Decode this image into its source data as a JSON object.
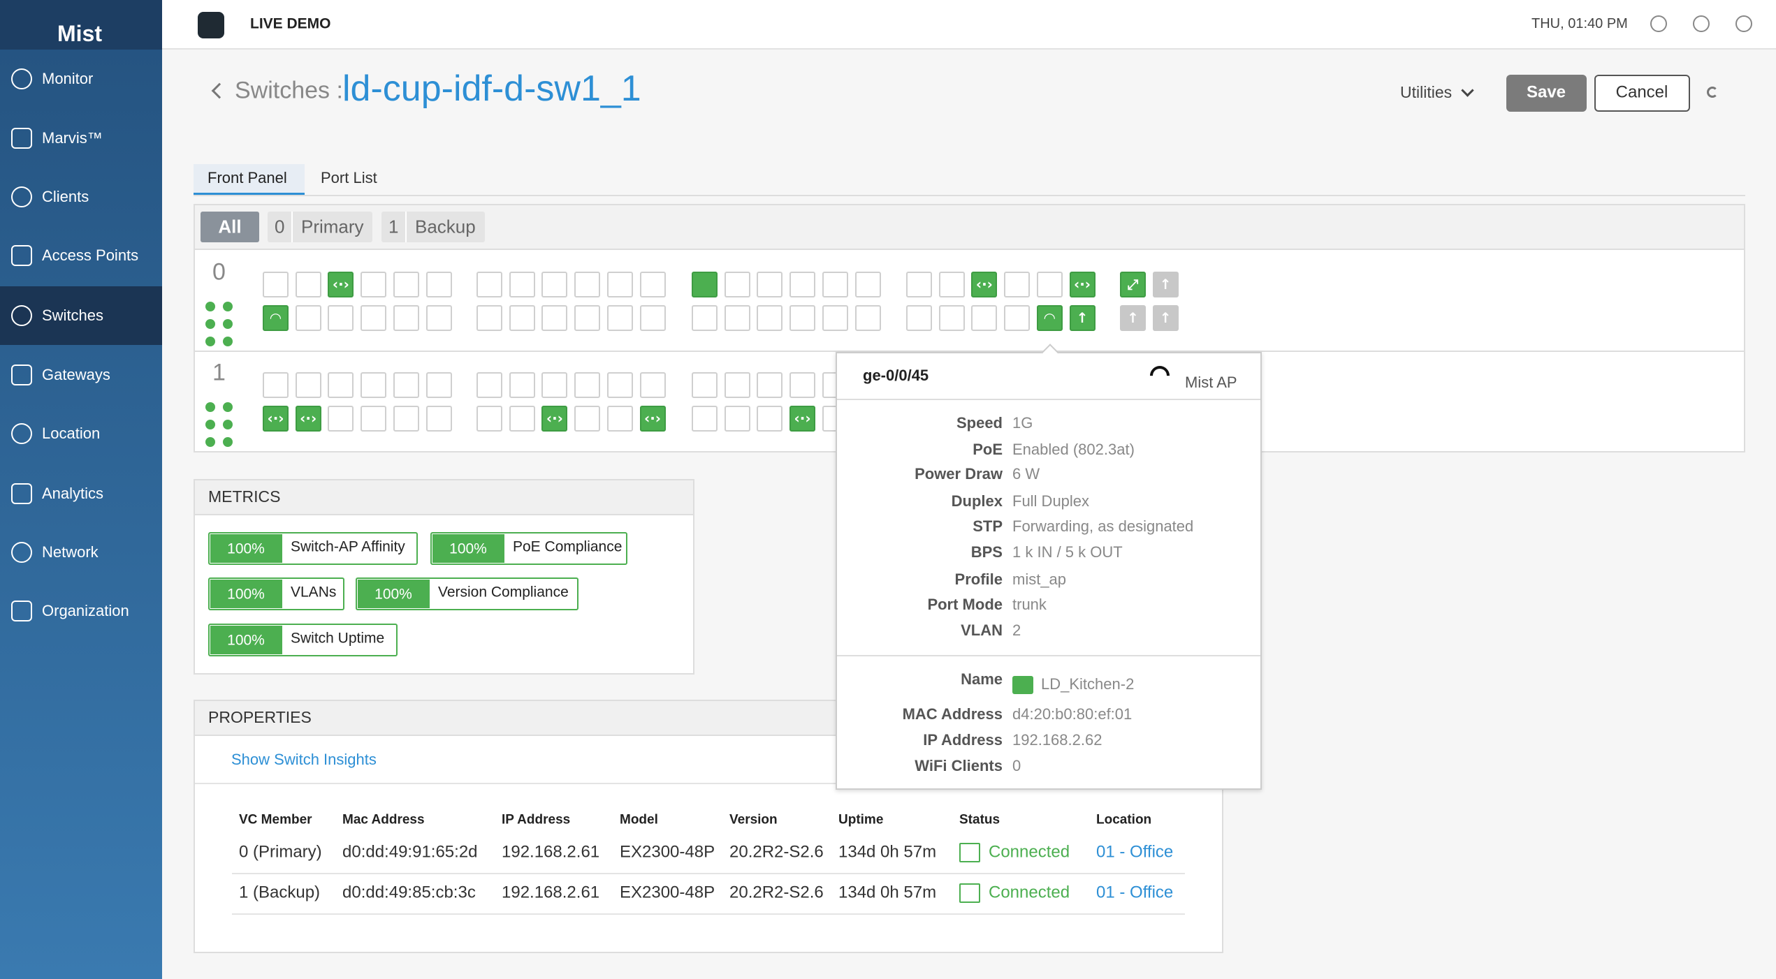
{
  "header": {
    "brand": "Mist",
    "title": "LIVE DEMO",
    "datetime": "THU, 01:40 PM"
  },
  "sidebar": {
    "items": [
      "Monitor",
      "Marvis™",
      "Clients",
      "Access Points",
      "Switches",
      "Gateways",
      "Location",
      "Analytics",
      "Network",
      "Organization"
    ]
  },
  "page": {
    "breadcrumb": "Switches :",
    "name": "ld-cup-idf-d-sw1_1",
    "utilities": "Utilities",
    "save": "Save",
    "cancel": "Cancel"
  },
  "tabs": [
    "Front Panel",
    "Port List"
  ],
  "filters": {
    "all": "All",
    "members": [
      {
        "id": 0,
        "role": "Primary"
      },
      {
        "id": 1,
        "role": "Backup"
      }
    ]
  },
  "members": [
    0,
    1
  ],
  "tooltip": {
    "port": "ge-0/0/45",
    "device": "Mist AP",
    "fields": [
      {
        "label": "Speed",
        "value": "1G"
      },
      {
        "label": "PoE",
        "value": "Enabled (802.3at)"
      },
      {
        "label": "Power Draw",
        "value": "6 W"
      },
      {
        "label": "Duplex",
        "value": "Full Duplex"
      },
      {
        "label": "STP",
        "value": "Forwarding, as designated"
      },
      {
        "label": "BPS",
        "value": "1 k IN / 5 k OUT"
      },
      {
        "label": "Profile",
        "value": "mist_ap"
      },
      {
        "label": "Port Mode",
        "value": "trunk"
      },
      {
        "label": "VLAN",
        "value": 2
      }
    ],
    "client": [
      {
        "label": "Name",
        "value": "LD_Kitchen-2"
      },
      {
        "label": "MAC Address",
        "value": "d4:20:b0:80:ef:01"
      },
      {
        "label": "IP Address",
        "value": "192.168.2.62"
      },
      {
        "label": "WiFi Clients",
        "value": 0
      }
    ]
  },
  "metrics": {
    "title": "METRICS",
    "items": [
      {
        "value": "100%",
        "label": "Switch-AP Affinity"
      },
      {
        "value": "100%",
        "label": "PoE Compliance"
      },
      {
        "value": "100%",
        "label": "VLANs"
      },
      {
        "value": "100%",
        "label": "Version Compliance"
      },
      {
        "value": "100%",
        "label": "Switch Uptime"
      }
    ]
  },
  "properties": {
    "title": "PROPERTIES",
    "link": "Show Switch Insights",
    "columns": [
      "VC Member",
      "Mac Address",
      "IP Address",
      "Model",
      "Version",
      "Uptime",
      "Status",
      "Location"
    ],
    "rows": [
      [
        "0 (Primary)",
        "d0:dd:49:91:65:2d",
        "192.168.2.61",
        "EX2300-48P",
        "20.2R2-S2.6",
        "134d 0h 57m",
        "Connected",
        "01 - Office"
      ],
      [
        "1 (Backup)",
        "d0:dd:49:85:cb:3c",
        "192.168.2.61",
        "EX2300-48P",
        "20.2R2-S2.6",
        "134d 0h 57m",
        "Connected",
        "01 - Office"
      ]
    ]
  }
}
